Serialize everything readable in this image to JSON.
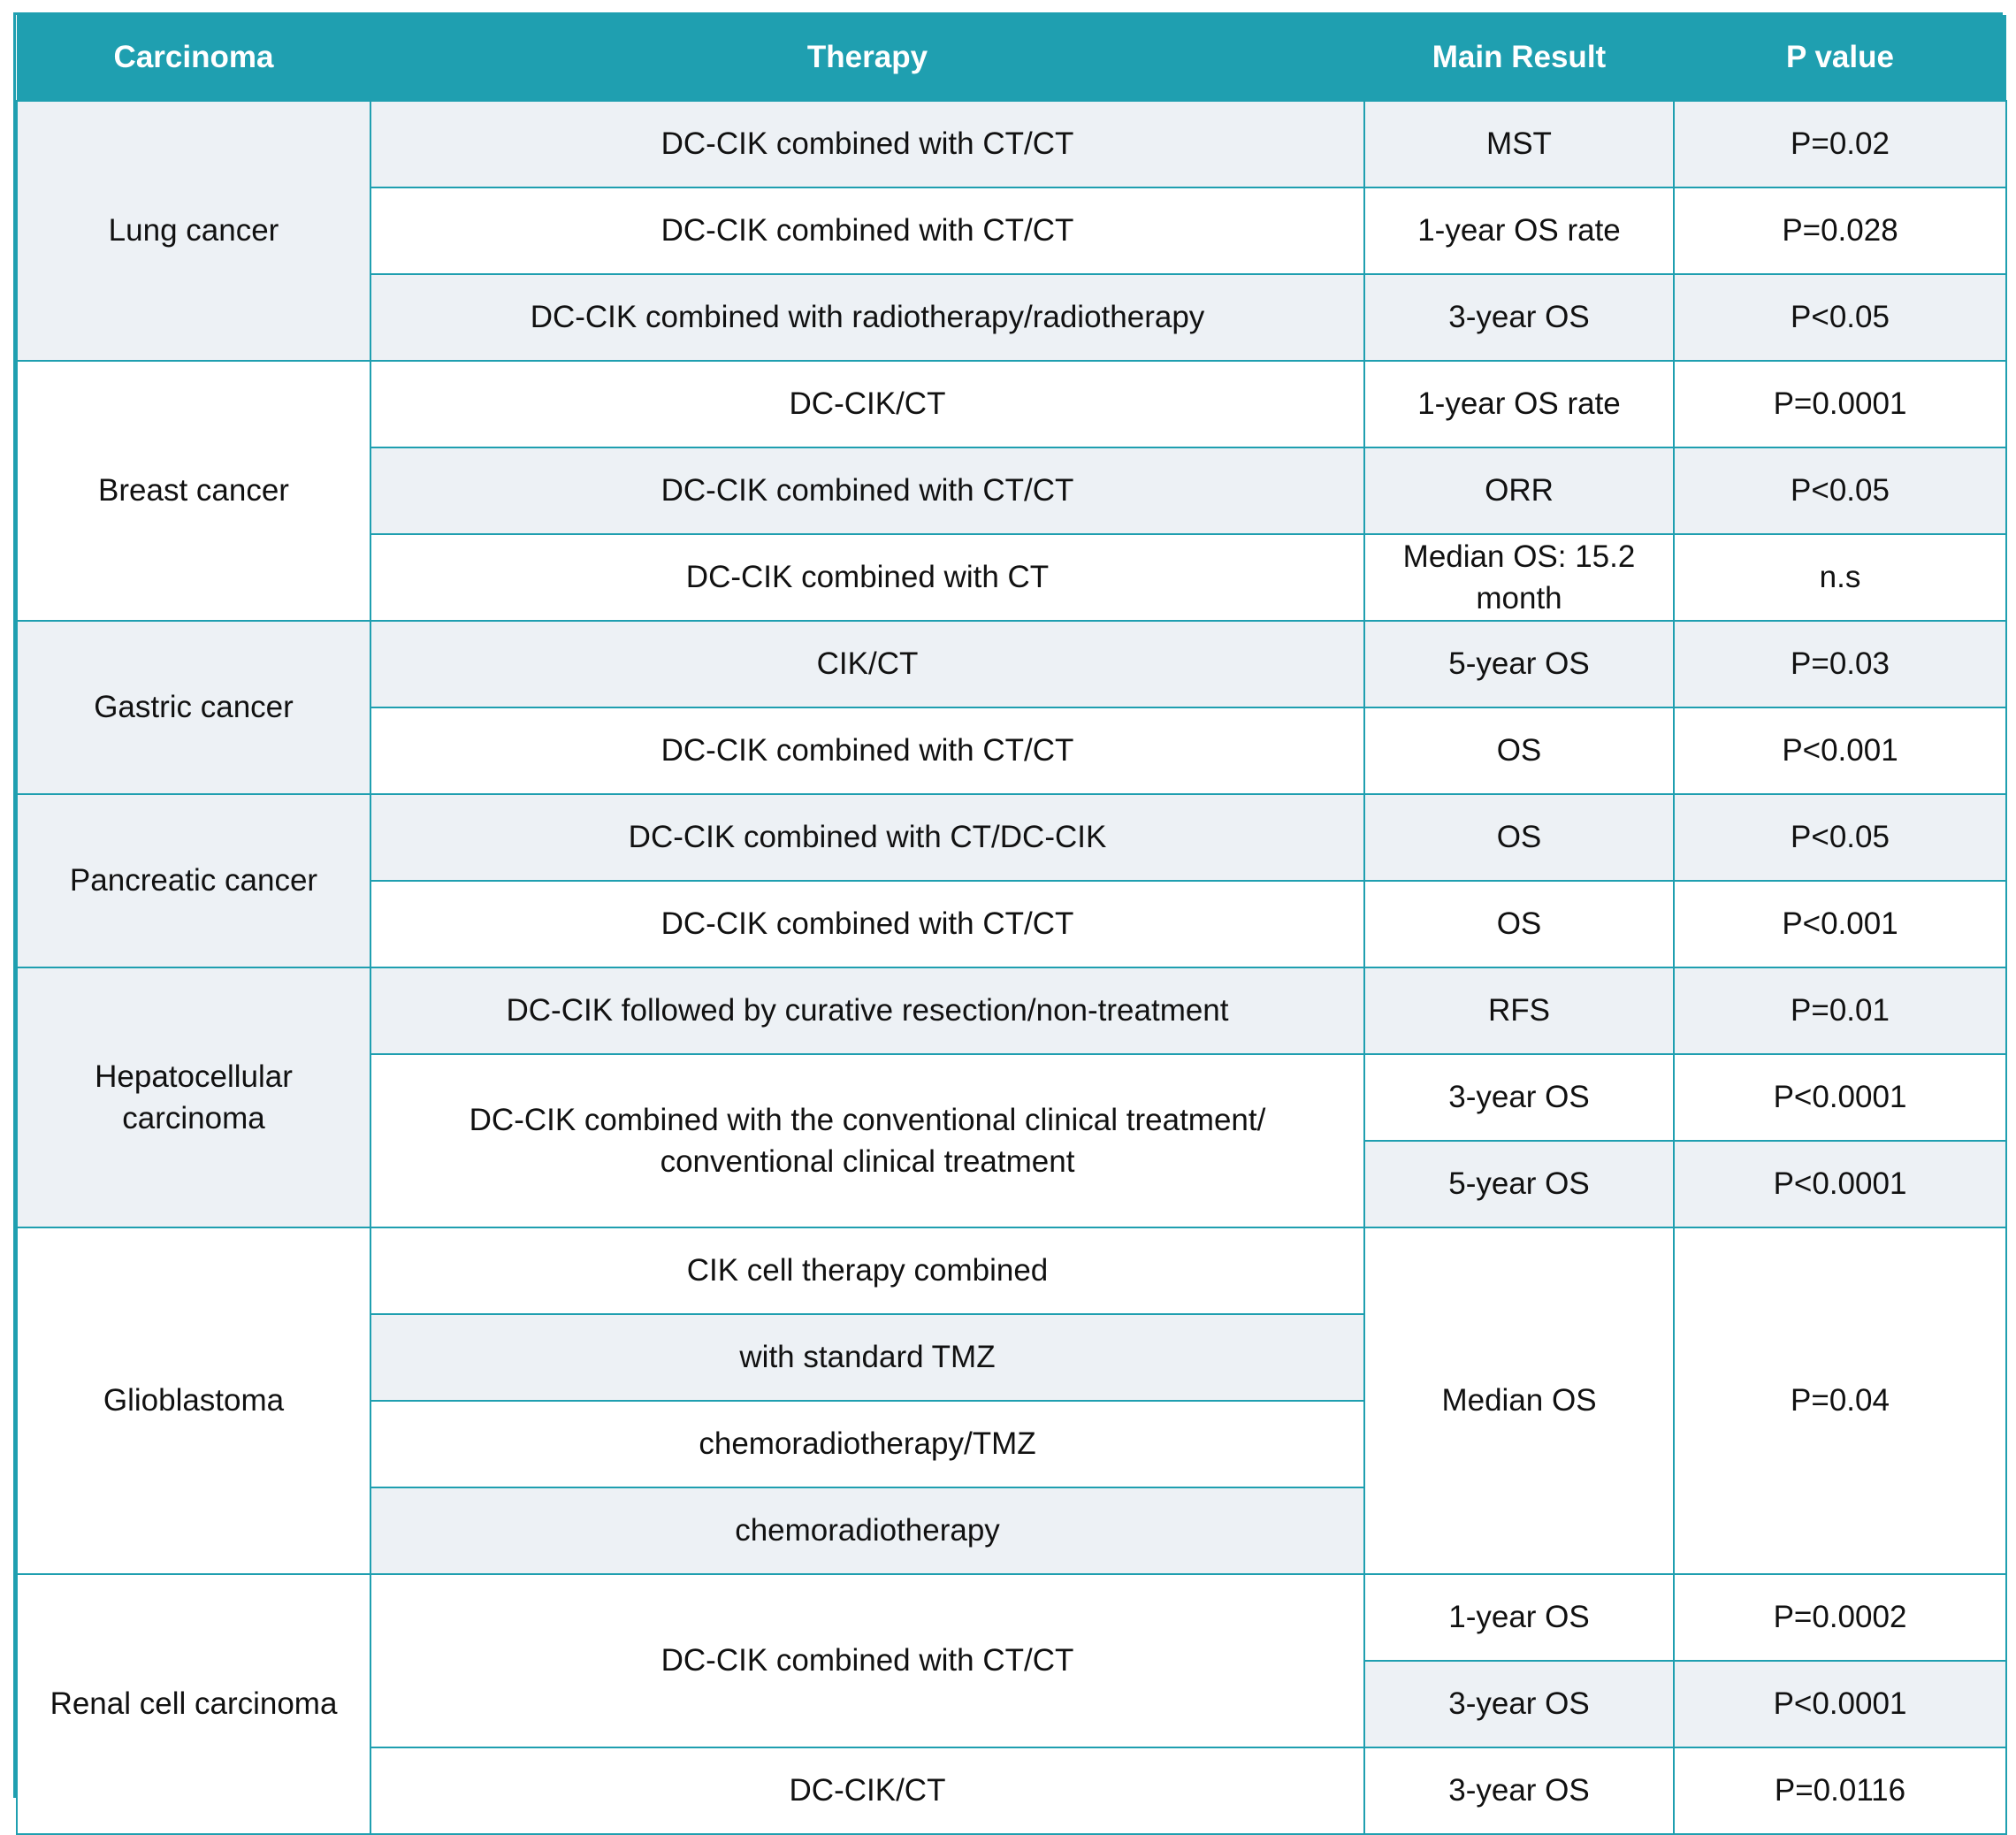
{
  "headers": [
    "Carcinoma",
    "Therapy",
    "Main Result",
    "P value"
  ],
  "rows": [
    {
      "carcinoma": "Lung cancer",
      "therapy": "DC-CIK combined with CT/CT",
      "result": "MST",
      "p": "P=0.02"
    },
    {
      "therapy": "DC-CIK combined with CT/CT",
      "result": "1-year OS rate",
      "p": "P=0.028"
    },
    {
      "therapy": "DC-CIK combined with radiotherapy/radiotherapy",
      "result": "3-year OS",
      "p": "P<0.05"
    },
    {
      "carcinoma": "Breast cancer",
      "therapy": "DC-CIK/CT",
      "result": "1-year OS rate",
      "p": "P=0.0001"
    },
    {
      "therapy": "DC-CIK combined with CT/CT",
      "result": "ORR",
      "p": "P<0.05"
    },
    {
      "therapy": "DC-CIK combined with CT",
      "result": "Median OS: 15.2 month",
      "p": "n.s"
    },
    {
      "carcinoma": "Gastric cancer",
      "therapy": "CIK/CT",
      "result": "5-year OS",
      "p": "P=0.03"
    },
    {
      "therapy": "DC-CIK combined with CT/CT",
      "result": "OS",
      "p": "P<0.001"
    },
    {
      "carcinoma": "Pancreatic cancer",
      "therapy": "DC-CIK combined with CT/DC-CIK",
      "result": "OS",
      "p": "P<0.05"
    },
    {
      "therapy": "DC-CIK combined with CT/CT",
      "result": "OS",
      "p": "P<0.001"
    },
    {
      "carcinoma": "Hepatocellular carcinoma",
      "therapy": "DC-CIK followed by curative resection/non-treatment",
      "result": "RFS",
      "p": "P=0.01"
    },
    {
      "therapy": "DC-CIK combined with the conventional clinical treatment/ conventional clinical treatment",
      "result": "3-year OS",
      "p": "P<0.0001"
    },
    {
      "result": "5-year OS",
      "p": "P<0.0001"
    },
    {
      "carcinoma": "Glioblastoma",
      "therapy": "CIK cell therapy combined",
      "result": "Median OS",
      "p": "P=0.04"
    },
    {
      "therapy": "with standard TMZ"
    },
    {
      "therapy": "chemoradiotherapy/TMZ"
    },
    {
      "therapy": "chemoradiotherapy"
    },
    {
      "carcinoma": "Renal cell carcinoma",
      "therapy": "DC-CIK combined with CT/CT",
      "result": "1-year OS",
      "p": "P=0.0002"
    },
    {
      "result": "3-year OS",
      "p": "P<0.0001"
    },
    {
      "therapy": "DC-CIK/CT",
      "result": "3-year OS",
      "p": "P=0.0116"
    }
  ]
}
